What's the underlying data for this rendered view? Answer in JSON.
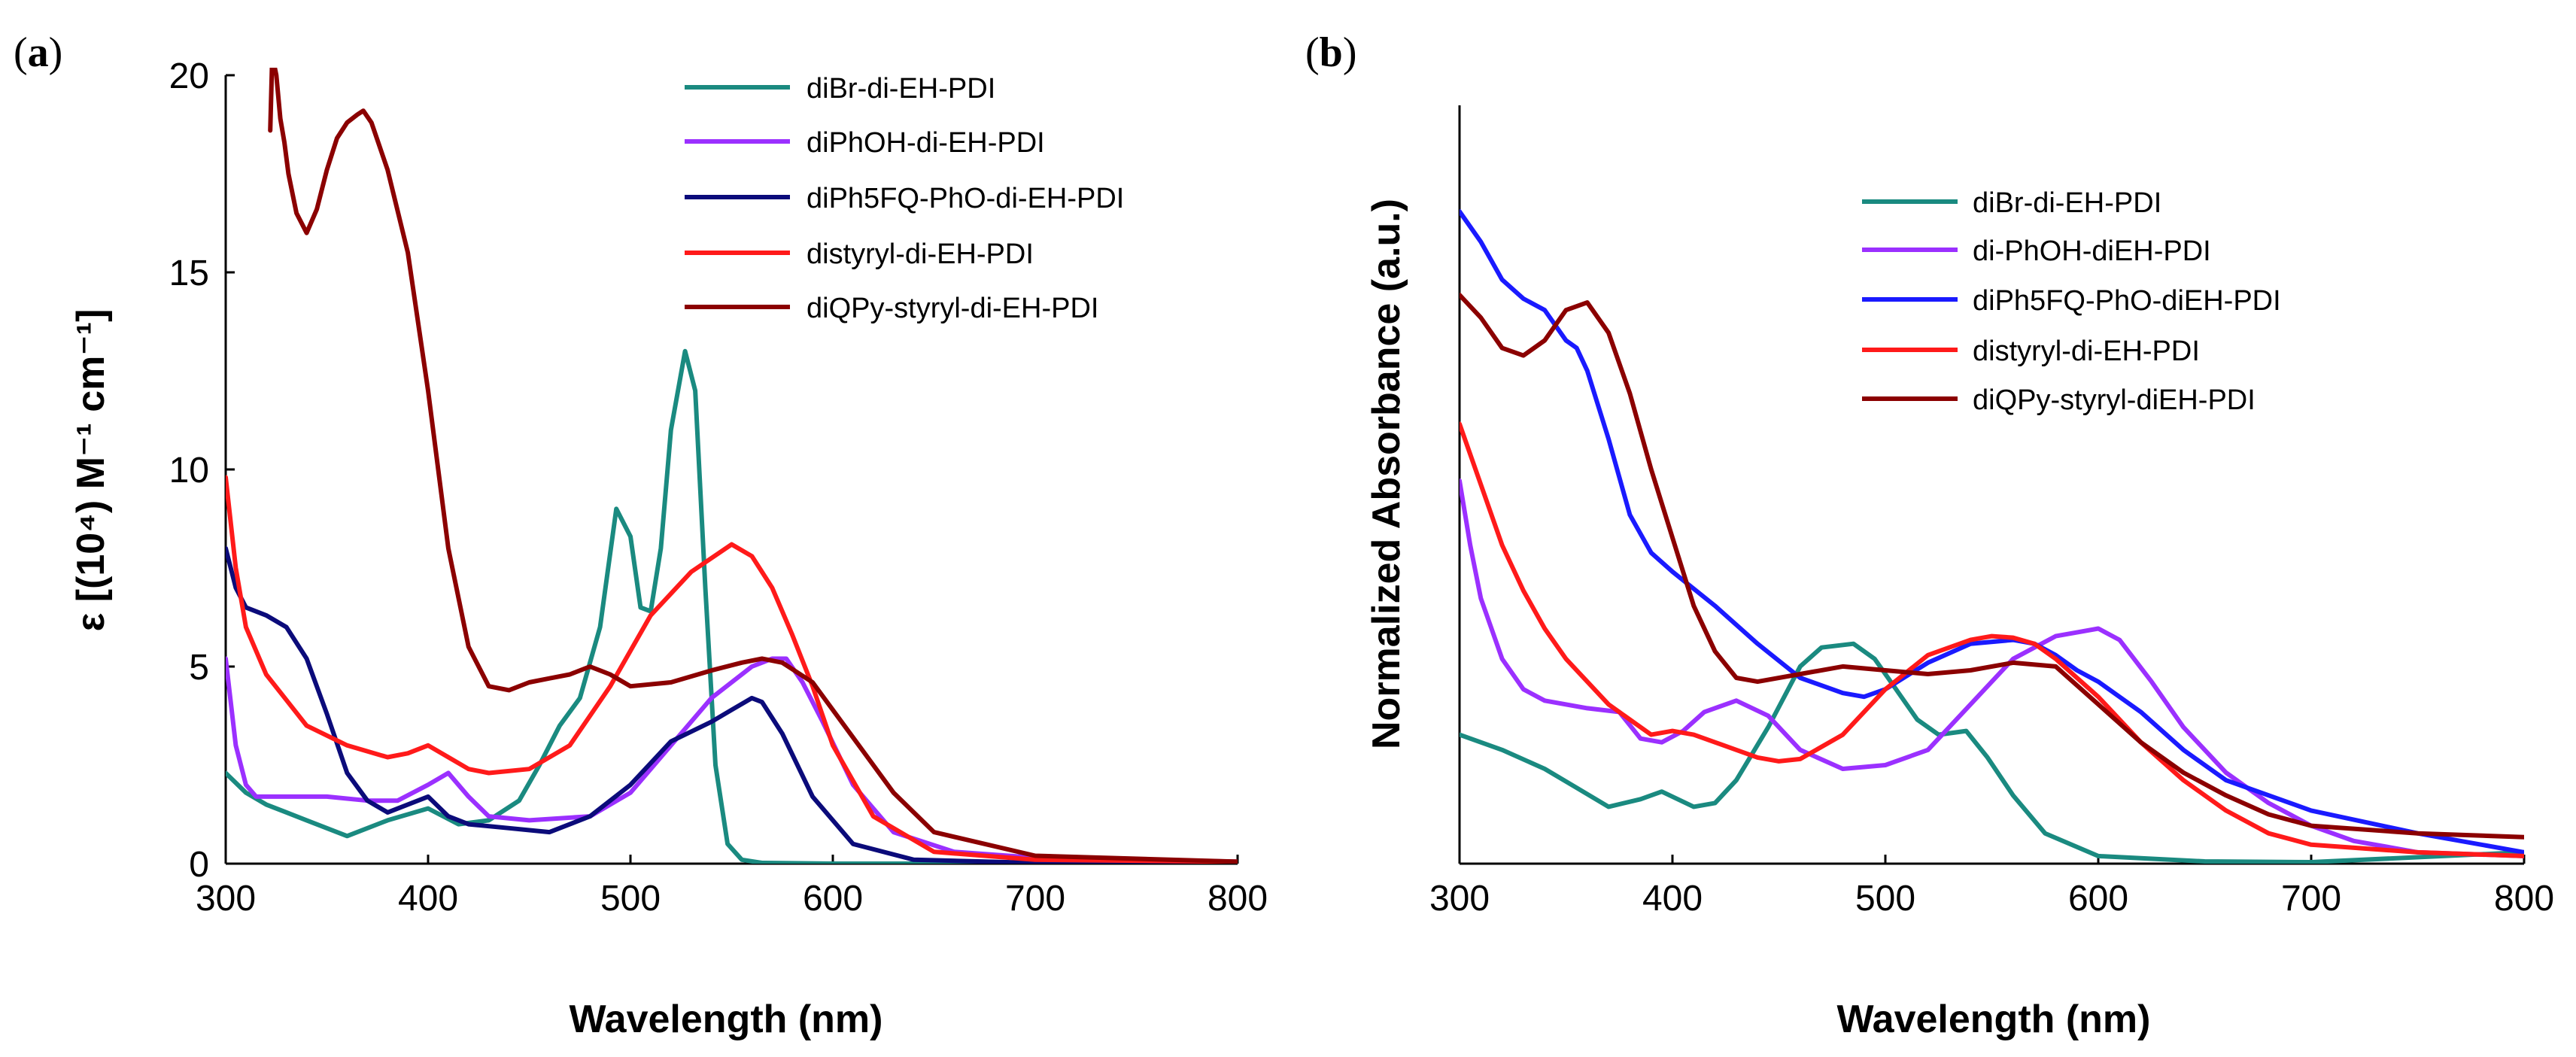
{
  "chart_data": [
    {
      "type": "line",
      "panel_label": "a",
      "title": "",
      "xlabel": "Wavelength (nm)",
      "ylabel": "ε [(10⁴) M⁻¹ cm⁻¹]",
      "xlim": [
        300,
        800
      ],
      "ylim": [
        0,
        20
      ],
      "x_ticks": [
        300,
        400,
        500,
        600,
        700,
        800
      ],
      "y_ticks": [
        0,
        5,
        10,
        15,
        20
      ],
      "grid": false,
      "legend_position": "top-right",
      "series": [
        {
          "name": "diBr-di-EH-PDI",
          "color": "#1a8a80",
          "x": [
            300,
            310,
            320,
            340,
            360,
            380,
            400,
            415,
            430,
            445,
            455,
            465,
            475,
            485,
            493,
            500,
            505,
            510,
            515,
            520,
            527,
            532,
            537,
            542,
            548,
            555,
            565,
            600,
            700,
            800
          ],
          "y": [
            2.3,
            1.8,
            1.5,
            1.1,
            0.7,
            1.1,
            1.4,
            1.0,
            1.1,
            1.6,
            2.5,
            3.5,
            4.2,
            6.0,
            9.0,
            8.3,
            6.5,
            6.4,
            8.0,
            11.0,
            13.0,
            12.0,
            7.0,
            2.5,
            0.5,
            0.1,
            0.02,
            0.0,
            0.0,
            0.0
          ]
        },
        {
          "name": "diPhOH-di-EH-PDI",
          "color": "#9b30ff",
          "x": [
            300,
            305,
            310,
            315,
            330,
            350,
            370,
            385,
            400,
            410,
            420,
            430,
            450,
            480,
            500,
            520,
            540,
            560,
            570,
            577,
            585,
            595,
            610,
            630,
            660,
            700,
            800
          ],
          "y": [
            5.2,
            3.0,
            2.0,
            1.7,
            1.7,
            1.7,
            1.6,
            1.6,
            2.0,
            2.3,
            1.7,
            1.2,
            1.1,
            1.2,
            1.8,
            3.0,
            4.2,
            5.0,
            5.2,
            5.2,
            4.6,
            3.6,
            2.0,
            0.8,
            0.3,
            0.15,
            0.05
          ]
        },
        {
          "name": "diPh5FQ-PhO-di-EH-PDI",
          "color": "#0b0b7a",
          "x": [
            300,
            305,
            310,
            320,
            330,
            340,
            350,
            360,
            370,
            380,
            390,
            400,
            410,
            420,
            440,
            460,
            480,
            500,
            520,
            540,
            550,
            560,
            565,
            575,
            590,
            610,
            640,
            700,
            800
          ],
          "y": [
            8.0,
            7.0,
            6.5,
            6.3,
            6.0,
            5.2,
            3.8,
            2.3,
            1.6,
            1.3,
            1.5,
            1.7,
            1.2,
            1.0,
            0.9,
            0.8,
            1.2,
            2.0,
            3.1,
            3.6,
            3.9,
            4.2,
            4.1,
            3.3,
            1.7,
            0.5,
            0.1,
            0.02,
            0.0
          ]
        },
        {
          "name": "distyryl-di-EH-PDI",
          "color": "#ff1a1a",
          "x": [
            300,
            305,
            310,
            320,
            340,
            360,
            380,
            390,
            400,
            410,
            420,
            430,
            450,
            470,
            490,
            510,
            530,
            550,
            560,
            570,
            580,
            590,
            600,
            620,
            650,
            700,
            800
          ],
          "y": [
            9.8,
            7.5,
            6.0,
            4.8,
            3.5,
            3.0,
            2.7,
            2.8,
            3.0,
            2.7,
            2.4,
            2.3,
            2.4,
            3.0,
            4.5,
            6.3,
            7.4,
            8.1,
            7.8,
            7.0,
            5.8,
            4.5,
            3.0,
            1.2,
            0.3,
            0.1,
            0.05
          ]
        },
        {
          "name": "diQPy-styryl-di-EH-PDI",
          "color": "#8b0000",
          "x": [
            322,
            323,
            325,
            327,
            329,
            331,
            335,
            340,
            345,
            350,
            355,
            360,
            365,
            368,
            372,
            380,
            390,
            400,
            410,
            420,
            430,
            440,
            450,
            460,
            470,
            480,
            490,
            500,
            520,
            540,
            555,
            565,
            575,
            590,
            610,
            630,
            650,
            700,
            800
          ],
          "y": [
            18.6,
            20.5,
            20.0,
            18.9,
            18.3,
            17.5,
            16.5,
            16.0,
            16.6,
            17.6,
            18.4,
            18.8,
            19.0,
            19.1,
            18.8,
            17.6,
            15.5,
            12.0,
            8.0,
            5.5,
            4.5,
            4.4,
            4.6,
            4.7,
            4.8,
            5.0,
            4.8,
            4.5,
            4.6,
            4.9,
            5.1,
            5.2,
            5.1,
            4.6,
            3.2,
            1.8,
            0.8,
            0.2,
            0.05
          ]
        }
      ]
    },
    {
      "type": "line",
      "panel_label": "b",
      "title": "",
      "xlabel": "Wavelength (nm)",
      "ylabel": "Normalized Absorbance (a.u.)",
      "xlim": [
        300,
        800
      ],
      "ylim": [
        0,
        1.0
      ],
      "x_ticks": [
        300,
        400,
        500,
        600,
        700,
        800
      ],
      "y_ticks": [],
      "grid": false,
      "legend_position": "top-right",
      "series": [
        {
          "name": "diBr-di-EH-PDI",
          "color": "#1a8a80",
          "x": [
            300,
            320,
            340,
            355,
            370,
            385,
            395,
            410,
            420,
            430,
            445,
            460,
            470,
            485,
            495,
            505,
            515,
            525,
            538,
            548,
            560,
            575,
            600,
            650,
            700,
            800
          ],
          "y": [
            0.17,
            0.15,
            0.125,
            0.1,
            0.075,
            0.085,
            0.095,
            0.075,
            0.08,
            0.11,
            0.18,
            0.26,
            0.285,
            0.29,
            0.27,
            0.23,
            0.19,
            0.17,
            0.175,
            0.14,
            0.09,
            0.04,
            0.01,
            0.003,
            0.002,
            0.015
          ]
        },
        {
          "name": "di-PhOH-diEH-PDI",
          "color": "#9b30ff",
          "x": [
            300,
            305,
            310,
            320,
            330,
            340,
            360,
            375,
            385,
            395,
            405,
            415,
            430,
            445,
            460,
            480,
            500,
            520,
            540,
            560,
            580,
            590,
            600,
            610,
            625,
            640,
            660,
            680,
            700,
            720,
            750,
            800
          ],
          "y": [
            0.505,
            0.42,
            0.35,
            0.27,
            0.23,
            0.215,
            0.205,
            0.2,
            0.165,
            0.16,
            0.175,
            0.2,
            0.215,
            0.195,
            0.15,
            0.125,
            0.13,
            0.15,
            0.21,
            0.27,
            0.3,
            0.305,
            0.31,
            0.295,
            0.24,
            0.18,
            0.12,
            0.08,
            0.05,
            0.03,
            0.015,
            0.01
          ]
        },
        {
          "name": "diPh5FQ-PhO-diEH-PDI",
          "color": "#1a1aff",
          "x": [
            300,
            310,
            320,
            330,
            340,
            345,
            350,
            355,
            360,
            370,
            380,
            390,
            400,
            420,
            440,
            460,
            480,
            490,
            500,
            520,
            540,
            560,
            570,
            580,
            590,
            600,
            620,
            640,
            660,
            700,
            750,
            800
          ],
          "y": [
            0.86,
            0.82,
            0.77,
            0.745,
            0.73,
            0.71,
            0.69,
            0.68,
            0.65,
            0.56,
            0.46,
            0.41,
            0.385,
            0.34,
            0.29,
            0.245,
            0.225,
            0.22,
            0.23,
            0.265,
            0.29,
            0.295,
            0.29,
            0.275,
            0.255,
            0.24,
            0.2,
            0.15,
            0.11,
            0.07,
            0.04,
            0.015
          ]
        },
        {
          "name": "distyryl-di-EH-PDI",
          "color": "#ff1a1a",
          "x": [
            300,
            310,
            320,
            330,
            340,
            350,
            360,
            370,
            380,
            390,
            400,
            410,
            420,
            430,
            440,
            450,
            460,
            480,
            500,
            520,
            540,
            550,
            560,
            570,
            580,
            600,
            620,
            640,
            660,
            680,
            700,
            750,
            800
          ],
          "y": [
            0.58,
            0.5,
            0.42,
            0.36,
            0.31,
            0.27,
            0.24,
            0.21,
            0.19,
            0.17,
            0.175,
            0.17,
            0.16,
            0.15,
            0.14,
            0.135,
            0.138,
            0.17,
            0.23,
            0.275,
            0.295,
            0.3,
            0.298,
            0.29,
            0.27,
            0.22,
            0.16,
            0.11,
            0.07,
            0.04,
            0.025,
            0.015,
            0.01
          ]
        },
        {
          "name": "diQPy-styryl-diEH-PDI",
          "color": "#8b0000",
          "x": [
            300,
            310,
            320,
            330,
            340,
            350,
            360,
            370,
            380,
            390,
            400,
            410,
            420,
            430,
            440,
            460,
            480,
            500,
            520,
            540,
            560,
            580,
            600,
            620,
            640,
            660,
            680,
            700,
            750,
            800
          ],
          "y": [
            0.75,
            0.72,
            0.68,
            0.67,
            0.69,
            0.73,
            0.74,
            0.7,
            0.62,
            0.52,
            0.43,
            0.34,
            0.28,
            0.245,
            0.24,
            0.25,
            0.26,
            0.255,
            0.25,
            0.255,
            0.265,
            0.26,
            0.21,
            0.16,
            0.12,
            0.09,
            0.065,
            0.05,
            0.04,
            0.035
          ]
        }
      ]
    }
  ]
}
